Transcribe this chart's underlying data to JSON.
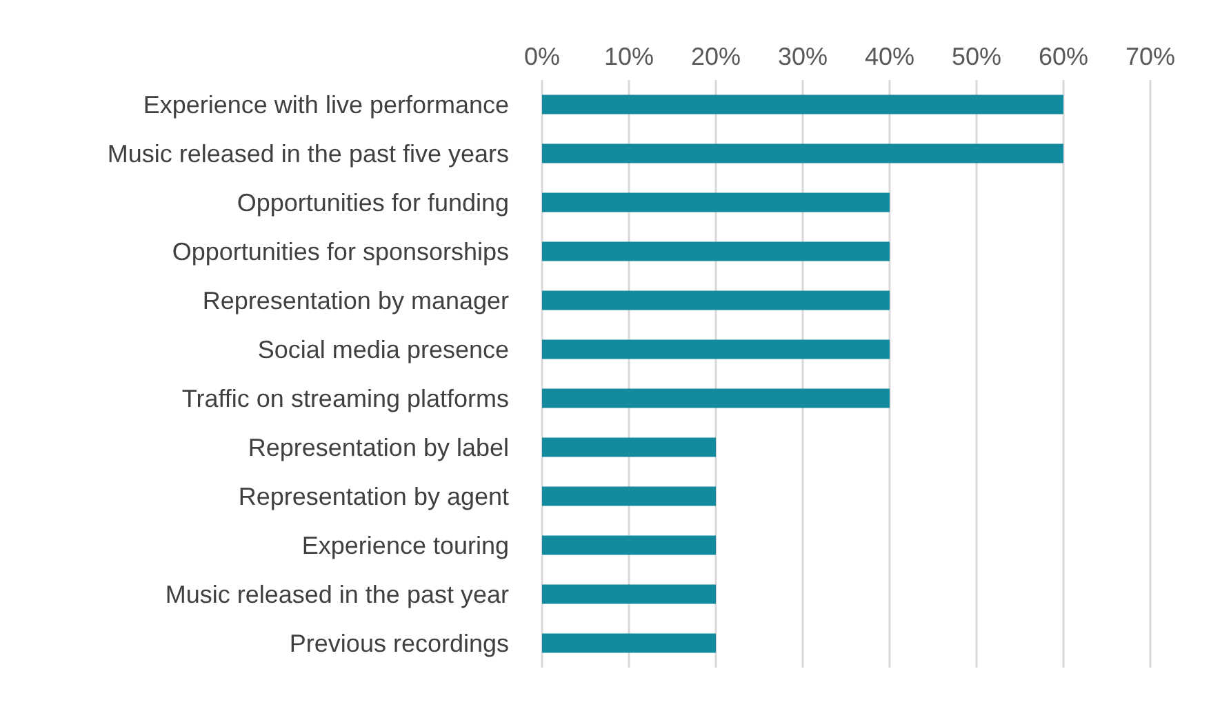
{
  "chart_data": {
    "type": "bar",
    "orientation": "horizontal",
    "categories": [
      "Experience with live performance",
      "Music released in the past five years",
      "Opportunities for funding",
      "Opportunities for sponsorships",
      "Representation by manager",
      "Social media presence",
      "Traffic on streaming platforms",
      "Representation by label",
      "Representation by agent",
      "Experience touring",
      "Music released in the past year",
      "Previous recordings"
    ],
    "values": [
      60,
      60,
      40,
      40,
      40,
      40,
      40,
      20,
      20,
      20,
      20,
      20
    ],
    "color": "#138a9e",
    "xlim": [
      0,
      70
    ],
    "xticks": [
      {
        "value": 0,
        "label": "0%"
      },
      {
        "value": 10,
        "label": "10%"
      },
      {
        "value": 20,
        "label": "20%"
      },
      {
        "value": 30,
        "label": "30%"
      },
      {
        "value": 40,
        "label": "40%"
      },
      {
        "value": 50,
        "label": "50%"
      },
      {
        "value": 60,
        "label": "60%"
      },
      {
        "value": 70,
        "label": "70%"
      }
    ],
    "grid": "x"
  }
}
